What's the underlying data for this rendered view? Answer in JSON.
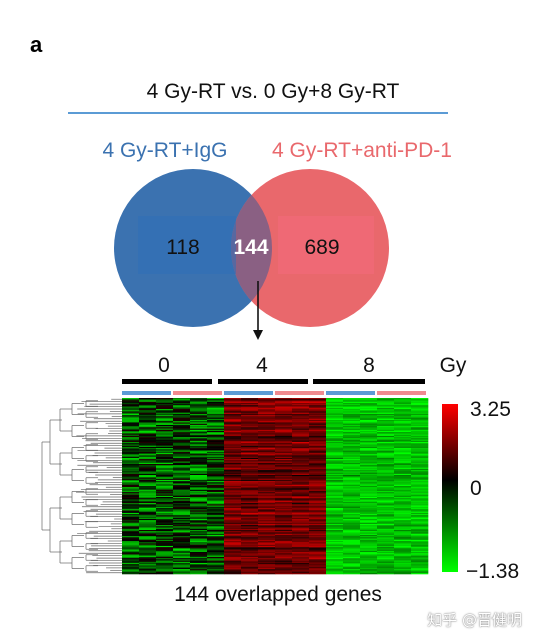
{
  "panel_label": "a",
  "comparison_title": "4 Gy-RT vs. 0 Gy+8 Gy-RT",
  "venn": {
    "left_set": {
      "label": "4 Gy-RT+IgG",
      "count": "118",
      "color": "#3b72b0"
    },
    "right_set": {
      "label": "4 Gy-RT+anti-PD-1",
      "count": "689",
      "color": "#e9686c"
    },
    "overlap": {
      "count": "144",
      "color": "#8a6083"
    }
  },
  "heatmap": {
    "groups": [
      {
        "label": "0",
        "columns": 6
      },
      {
        "label": "4",
        "columns": 6
      },
      {
        "label": "8",
        "columns": 6
      }
    ],
    "unit_label": "Gy",
    "treatment_colors": {
      "igg": "#5b9bd5",
      "anti_pd1": "#f08a8f"
    },
    "rows": 144,
    "colorbar": {
      "max": "3.25",
      "mid": "0",
      "min": "−1.38",
      "max_color": "#ff0000",
      "mid_color": "#000000",
      "min_color": "#00ff00"
    },
    "caption": "144 overlapped genes"
  },
  "watermark": "知乎 @晋健明"
}
